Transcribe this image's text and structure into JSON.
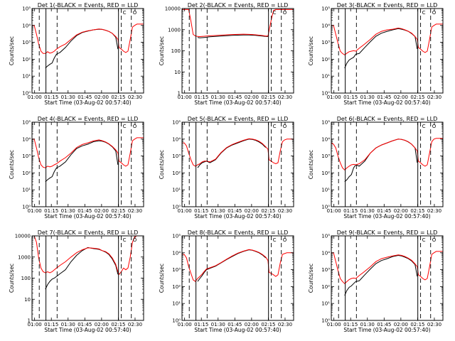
{
  "chart_data": {
    "type": "line",
    "layout": "3x3 grid",
    "legend": "in titles (BLACK = Events, RED = LLD)",
    "series_colors": {
      "events": "#000000",
      "lld": "#ff0000"
    },
    "x_axis": {
      "label": "Start Time (03-Aug-02 00:57:40)",
      "tick_labels": [
        "01:00",
        "01:15",
        "01:30",
        "01:45",
        "02:00",
        "02:15",
        "02:30"
      ],
      "tick_minutes": [
        2.33,
        17.33,
        32.33,
        47.33,
        62.33,
        77.33,
        92.33
      ],
      "xlim_minutes": [
        0,
        100
      ]
    },
    "y_axis": {
      "label": "Counts/sec",
      "scale": "log"
    },
    "markers": {
      "dashed_minutes": [
        6.5,
        22.5,
        80,
        89
      ],
      "solid_minutes": [
        12.5,
        77.5
      ],
      "labels": [
        "C",
        "O"
      ]
    },
    "panels": [
      {
        "title": "Det 1(-BLACK = Events, RED = LLD",
        "ylim": [
          1,
          100000
        ],
        "ytick_labels": [
          "10⁰",
          "10¹",
          "10²",
          "10³",
          "10⁴",
          "10⁵"
        ],
        "ytick_values": [
          1,
          10,
          100,
          1000,
          10000,
          100000
        ]
      },
      {
        "title": "Det 2(-BLACK = Events, RED = LLD",
        "ylim": [
          1,
          10000
        ],
        "ytick_labels": [
          "1",
          "10",
          "100",
          "1000",
          "10000"
        ],
        "ytick_values": [
          1,
          10,
          100,
          1000,
          10000
        ]
      },
      {
        "title": "Det 3(-BLACK = Events, RED = LLD",
        "ylim": [
          1,
          100000
        ],
        "ytick_labels": [
          "10⁰",
          "10¹",
          "10²",
          "10³",
          "10⁴",
          "10⁵"
        ],
        "ytick_values": [
          1,
          10,
          100,
          1000,
          10000,
          100000
        ]
      },
      {
        "title": "Det 4(-BLACK = Events, RED = LLD",
        "ylim": [
          1,
          100000
        ],
        "ytick_labels": [
          "10⁰",
          "10¹",
          "10²",
          "10³",
          "10⁴",
          "10⁵"
        ],
        "ytick_values": [
          1,
          10,
          100,
          1000,
          10000,
          100000
        ]
      },
      {
        "title": "Det 5(-BLACK = Events, RED = LLD",
        "ylim": [
          1,
          100000
        ],
        "ytick_labels": [
          "10⁰",
          "10¹",
          "10²",
          "10³",
          "10⁴",
          "10⁵"
        ],
        "ytick_values": [
          1,
          10,
          100,
          1000,
          10000,
          100000
        ]
      },
      {
        "title": "Det 6(-BLACK = Events, RED = LLD",
        "ylim": [
          1,
          100000
        ],
        "ytick_labels": [
          "10⁰",
          "10¹",
          "10²",
          "10³",
          "10⁴",
          "10⁵"
        ],
        "ytick_values": [
          1,
          10,
          100,
          1000,
          10000,
          100000
        ]
      },
      {
        "title": "Det 7(-BLACK = Events, RED = LLD",
        "ylim": [
          1,
          10000
        ],
        "ytick_labels": [
          "1",
          "10",
          "100",
          "1000",
          "10000"
        ],
        "ytick_values": [
          1,
          10,
          100,
          1000,
          10000
        ]
      },
      {
        "title": "Det 8(-BLACK = Events, RED = LLD",
        "ylim": [
          1,
          100000
        ],
        "ytick_labels": [
          "10⁰",
          "10¹",
          "10²",
          "10³",
          "10⁴",
          "10⁵"
        ],
        "ytick_values": [
          1,
          10,
          100,
          1000,
          10000,
          100000
        ]
      },
      {
        "title": "Det 9(-BLACK = Events, RED = LLD",
        "ylim": [
          1,
          100000
        ],
        "ytick_labels": [
          "10⁰",
          "10¹",
          "10²",
          "10³",
          "10⁴",
          "10⁵"
        ],
        "ytick_values": [
          1,
          10,
          100,
          1000,
          10000,
          100000
        ]
      }
    ],
    "series_minutes": [
      0,
      2,
      4,
      6,
      8,
      10,
      12,
      14,
      16,
      18,
      20,
      22,
      25,
      30,
      35,
      40,
      45,
      50,
      55,
      60,
      63,
      66,
      69,
      72,
      75,
      77,
      78,
      80,
      82,
      84,
      86,
      88,
      90,
      92,
      94,
      96,
      98,
      100
    ],
    "series": [
      {
        "panel": 1,
        "name": "Events",
        "values": [
          null,
          null,
          null,
          null,
          null,
          null,
          30,
          40,
          50,
          60,
          120,
          200,
          250,
          500,
          1200,
          2500,
          3800,
          4600,
          5500,
          6000,
          5800,
          5200,
          4400,
          3400,
          2000,
          400,
          null,
          null,
          null,
          null,
          30,
          null,
          null,
          null,
          null,
          null,
          null,
          null
        ]
      },
      {
        "panel": 1,
        "name": "LLD",
        "values": [
          10000,
          10000,
          3000,
          800,
          300,
          220,
          220,
          280,
          230,
          250,
          300,
          400,
          550,
          800,
          1500,
          2800,
          4000,
          4800,
          5500,
          6200,
          5800,
          5200,
          4400,
          3400,
          2200,
          1500,
          500,
          400,
          300,
          250,
          300,
          1500,
          8000,
          10000,
          12000,
          12000,
          12000,
          12000
        ]
      },
      {
        "panel": 2,
        "name": "Events",
        "values": [
          null,
          null,
          null,
          null,
          null,
          null,
          null,
          430,
          410,
          420,
          430,
          440,
          460,
          480,
          500,
          520,
          540,
          550,
          560,
          560,
          550,
          540,
          520,
          500,
          480,
          470,
          null,
          null,
          null,
          null,
          null,
          null,
          null,
          null,
          null,
          null,
          null,
          null
        ]
      },
      {
        "panel": 2,
        "name": "LLD",
        "values": [
          9000,
          9000,
          9000,
          9000,
          2500,
          600,
          500,
          480,
          470,
          480,
          490,
          500,
          510,
          530,
          550,
          570,
          590,
          600,
          610,
          600,
          590,
          570,
          550,
          530,
          500,
          500,
          900,
          3000,
          8000,
          9000,
          9000,
          9000,
          9000,
          9000,
          9000,
          9000,
          9000,
          9000
        ]
      },
      {
        "panel": 3,
        "name": "Events",
        "values": [
          null,
          null,
          null,
          null,
          null,
          null,
          30,
          60,
          90,
          110,
          130,
          200,
          220,
          500,
          1100,
          2300,
          3500,
          4500,
          5500,
          6500,
          6000,
          5300,
          4500,
          3300,
          2200,
          400,
          null,
          null,
          null,
          null,
          30,
          null,
          null,
          null,
          null,
          null,
          null,
          null
        ]
      },
      {
        "panel": 3,
        "name": "LLD",
        "values": [
          10000,
          10000,
          3000,
          900,
          300,
          220,
          180,
          230,
          280,
          300,
          320,
          300,
          450,
          800,
          1500,
          3000,
          4500,
          5500,
          6000,
          7000,
          6500,
          5500,
          4500,
          3500,
          2200,
          1500,
          500,
          400,
          300,
          250,
          300,
          1500,
          8000,
          10000,
          12000,
          12000,
          12000,
          12000
        ]
      },
      {
        "panel": 4,
        "name": "Events",
        "values": [
          null,
          null,
          null,
          null,
          null,
          null,
          30,
          40,
          50,
          60,
          120,
          200,
          250,
          450,
          1200,
          2800,
          4000,
          5000,
          7000,
          8000,
          7500,
          6500,
          5000,
          3500,
          2000,
          300,
          null,
          null,
          null,
          null,
          30,
          null,
          null,
          null,
          null,
          null,
          null,
          null
        ]
      },
      {
        "panel": 4,
        "name": "LLD",
        "values": [
          10000,
          10000,
          3000,
          800,
          300,
          220,
          200,
          250,
          230,
          250,
          300,
          350,
          500,
          800,
          1500,
          3200,
          4800,
          6000,
          7800,
          9000,
          8000,
          6800,
          5200,
          3700,
          2300,
          1500,
          500,
          400,
          300,
          250,
          300,
          1500,
          8000,
          10000,
          12000,
          12000,
          12000,
          12000
        ]
      },
      {
        "panel": 5,
        "name": "Events",
        "values": [
          null,
          null,
          null,
          null,
          null,
          null,
          null,
          200,
          300,
          400,
          450,
          500,
          400,
          600,
          1500,
          3000,
          4500,
          6000,
          8000,
          10000,
          9500,
          8500,
          6800,
          5000,
          3200,
          null,
          null,
          null,
          null,
          null,
          null,
          null,
          null,
          null,
          null,
          null,
          null,
          null
        ]
      },
      {
        "panel": 5,
        "name": "LLD",
        "values": [
          6000,
          6000,
          4000,
          1500,
          600,
          300,
          250,
          300,
          350,
          450,
          500,
          500,
          450,
          650,
          1600,
          3200,
          4800,
          6500,
          8500,
          10500,
          10000,
          9000,
          7500,
          5500,
          3500,
          2500,
          600,
          500,
          400,
          350,
          400,
          2000,
          7000,
          9000,
          10000,
          10000,
          10000,
          10000
        ]
      },
      {
        "panel": 6,
        "name": "Events",
        "values": [
          null,
          null,
          null,
          null,
          null,
          null,
          30,
          40,
          60,
          80,
          200,
          300,
          250,
          500,
          1500,
          3000,
          4500,
          6000,
          8000,
          10000,
          9500,
          8500,
          6800,
          5000,
          3000,
          400,
          null,
          null,
          null,
          null,
          30,
          null,
          null,
          null,
          null,
          null,
          null,
          null
        ]
      },
      {
        "panel": 6,
        "name": "LLD",
        "values": [
          6000,
          5000,
          3000,
          1000,
          400,
          200,
          150,
          200,
          250,
          300,
          320,
          300,
          350,
          600,
          1500,
          3000,
          4500,
          6000,
          8000,
          10000,
          9500,
          8500,
          7000,
          5000,
          3000,
          2000,
          500,
          400,
          300,
          250,
          300,
          1500,
          7000,
          10000,
          11000,
          11000,
          11000,
          11000
        ]
      },
      {
        "panel": 7,
        "name": "Events",
        "values": [
          null,
          null,
          null,
          null,
          null,
          null,
          30,
          50,
          70,
          90,
          100,
          120,
          160,
          250,
          600,
          1200,
          2000,
          2800,
          2500,
          2300,
          2000,
          1700,
          1300,
          800,
          400,
          150,
          null,
          null,
          null,
          null,
          30,
          null,
          null,
          null,
          null,
          null,
          null,
          null
        ]
      },
      {
        "panel": 7,
        "name": "LLD",
        "values": [
          10000,
          10000,
          5000,
          900,
          300,
          200,
          180,
          200,
          180,
          200,
          250,
          300,
          400,
          600,
          1000,
          1600,
          2200,
          2700,
          2600,
          2400,
          2000,
          1800,
          1400,
          900,
          450,
          200,
          150,
          200,
          300,
          250,
          300,
          1000,
          5000,
          9000,
          10000,
          10000,
          10000,
          10000
        ]
      },
      {
        "panel": 8,
        "name": "Events",
        "values": [
          null,
          null,
          null,
          null,
          null,
          null,
          null,
          200,
          300,
          450,
          700,
          1000,
          1200,
          1600,
          2500,
          4000,
          6000,
          9000,
          12000,
          15000,
          14000,
          12000,
          10000,
          7500,
          5000,
          null,
          null,
          null,
          null,
          null,
          null,
          null,
          null,
          null,
          null,
          null,
          null,
          null
        ]
      },
      {
        "panel": 8,
        "name": "LLD",
        "values": [
          8000,
          8000,
          5000,
          1500,
          600,
          250,
          200,
          300,
          400,
          550,
          800,
          1100,
          1300,
          1700,
          2600,
          4200,
          6500,
          9500,
          12500,
          15500,
          14500,
          12500,
          10500,
          8000,
          5500,
          3500,
          700,
          600,
          500,
          400,
          500,
          2500,
          8000,
          9000,
          10000,
          10000,
          10000,
          10000
        ]
      },
      {
        "panel": 9,
        "name": "Events",
        "values": [
          null,
          null,
          null,
          null,
          null,
          null,
          30,
          60,
          90,
          110,
          150,
          200,
          220,
          500,
          1100,
          2300,
          3500,
          4500,
          6000,
          7000,
          6500,
          5500,
          4500,
          3300,
          2000,
          400,
          null,
          null,
          null,
          null,
          30,
          null,
          null,
          null,
          null,
          null,
          null,
          null
        ]
      },
      {
        "panel": 9,
        "name": "LLD",
        "values": [
          10000,
          10000,
          3000,
          900,
          300,
          200,
          150,
          200,
          260,
          300,
          320,
          300,
          450,
          800,
          1500,
          3000,
          4500,
          5500,
          6500,
          7500,
          7000,
          6000,
          4800,
          3600,
          2200,
          1500,
          500,
          400,
          300,
          250,
          300,
          1500,
          8000,
          10000,
          12000,
          12000,
          12000,
          12000
        ]
      }
    ]
  }
}
